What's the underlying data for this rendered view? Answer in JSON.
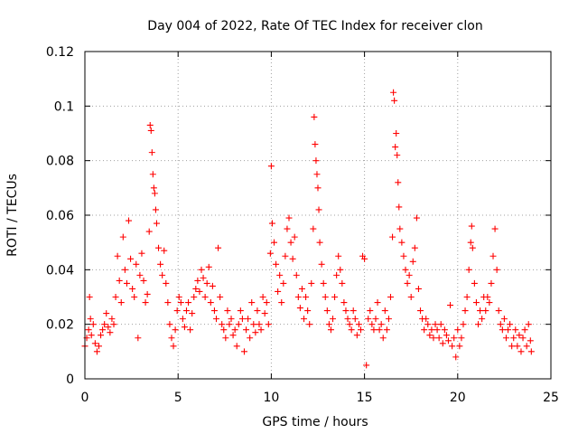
{
  "chart_data": {
    "type": "scatter",
    "title": "Day 004 of 2022, Rate Of TEC Index for receiver clon",
    "xlabel": "GPS time / hours",
    "ylabel": "ROTI / TECUs",
    "xlim": [
      0,
      25
    ],
    "ylim": [
      0,
      0.12
    ],
    "xticks": [
      0,
      5,
      10,
      15,
      20,
      25
    ],
    "xtick_labels": [
      "0",
      "5",
      "10",
      "15",
      "20",
      "25"
    ],
    "yticks": [
      0,
      0.02,
      0.04,
      0.06,
      0.08,
      0.1,
      0.12
    ],
    "ytick_labels": [
      "0",
      "0.02",
      "0.04",
      "0.06",
      "0.08",
      "0.1",
      "0.12"
    ],
    "grid": true,
    "marker": "+",
    "color": "#ff0000",
    "series": [
      {
        "name": "ROTI",
        "points": [
          [
            0.0,
            0.012
          ],
          [
            0.1,
            0.015
          ],
          [
            0.2,
            0.018
          ],
          [
            0.25,
            0.03
          ],
          [
            0.3,
            0.022
          ],
          [
            0.35,
            0.016
          ],
          [
            0.45,
            0.02
          ],
          [
            0.55,
            0.013
          ],
          [
            0.65,
            0.01
          ],
          [
            0.75,
            0.012
          ],
          [
            0.85,
            0.016
          ],
          [
            0.95,
            0.018
          ],
          [
            1.05,
            0.02
          ],
          [
            1.15,
            0.024
          ],
          [
            1.25,
            0.019
          ],
          [
            1.35,
            0.017
          ],
          [
            1.45,
            0.022
          ],
          [
            1.55,
            0.02
          ],
          [
            1.65,
            0.03
          ],
          [
            1.75,
            0.045
          ],
          [
            1.85,
            0.036
          ],
          [
            1.95,
            0.028
          ],
          [
            2.05,
            0.052
          ],
          [
            2.15,
            0.04
          ],
          [
            2.25,
            0.035
          ],
          [
            2.35,
            0.058
          ],
          [
            2.45,
            0.044
          ],
          [
            2.55,
            0.033
          ],
          [
            2.65,
            0.03
          ],
          [
            2.75,
            0.042
          ],
          [
            2.85,
            0.015
          ],
          [
            2.95,
            0.038
          ],
          [
            3.05,
            0.046
          ],
          [
            3.15,
            0.036
          ],
          [
            3.25,
            0.028
          ],
          [
            3.35,
            0.031
          ],
          [
            3.45,
            0.054
          ],
          [
            3.5,
            0.093
          ],
          [
            3.55,
            0.091
          ],
          [
            3.6,
            0.083
          ],
          [
            3.65,
            0.075
          ],
          [
            3.7,
            0.07
          ],
          [
            3.75,
            0.068
          ],
          [
            3.8,
            0.062
          ],
          [
            3.85,
            0.057
          ],
          [
            3.95,
            0.048
          ],
          [
            4.05,
            0.042
          ],
          [
            4.15,
            0.038
          ],
          [
            4.25,
            0.047
          ],
          [
            4.35,
            0.035
          ],
          [
            4.45,
            0.028
          ],
          [
            4.55,
            0.02
          ],
          [
            4.65,
            0.015
          ],
          [
            4.75,
            0.012
          ],
          [
            4.85,
            0.018
          ],
          [
            4.95,
            0.025
          ],
          [
            5.05,
            0.03
          ],
          [
            5.15,
            0.028
          ],
          [
            5.25,
            0.022
          ],
          [
            5.35,
            0.019
          ],
          [
            5.45,
            0.025
          ],
          [
            5.55,
            0.028
          ],
          [
            5.65,
            0.018
          ],
          [
            5.75,
            0.024
          ],
          [
            5.85,
            0.03
          ],
          [
            5.95,
            0.033
          ],
          [
            6.05,
            0.036
          ],
          [
            6.15,
            0.032
          ],
          [
            6.25,
            0.04
          ],
          [
            6.35,
            0.037
          ],
          [
            6.45,
            0.03
          ],
          [
            6.55,
            0.035
          ],
          [
            6.65,
            0.041
          ],
          [
            6.75,
            0.028
          ],
          [
            6.85,
            0.034
          ],
          [
            6.95,
            0.025
          ],
          [
            7.05,
            0.022
          ],
          [
            7.15,
            0.048
          ],
          [
            7.25,
            0.03
          ],
          [
            7.35,
            0.02
          ],
          [
            7.45,
            0.018
          ],
          [
            7.55,
            0.015
          ],
          [
            7.65,
            0.025
          ],
          [
            7.75,
            0.02
          ],
          [
            7.85,
            0.022
          ],
          [
            7.95,
            0.016
          ],
          [
            8.05,
            0.018
          ],
          [
            8.15,
            0.012
          ],
          [
            8.25,
            0.02
          ],
          [
            8.35,
            0.025
          ],
          [
            8.45,
            0.022
          ],
          [
            8.55,
            0.01
          ],
          [
            8.65,
            0.018
          ],
          [
            8.75,
            0.022
          ],
          [
            8.85,
            0.015
          ],
          [
            8.95,
            0.028
          ],
          [
            9.05,
            0.02
          ],
          [
            9.15,
            0.017
          ],
          [
            9.25,
            0.025
          ],
          [
            9.35,
            0.02
          ],
          [
            9.45,
            0.018
          ],
          [
            9.55,
            0.03
          ],
          [
            9.65,
            0.024
          ],
          [
            9.75,
            0.028
          ],
          [
            9.85,
            0.02
          ],
          [
            9.95,
            0.046
          ],
          [
            10.0,
            0.078
          ],
          [
            10.05,
            0.057
          ],
          [
            10.15,
            0.05
          ],
          [
            10.25,
            0.042
          ],
          [
            10.35,
            0.032
          ],
          [
            10.45,
            0.038
          ],
          [
            10.55,
            0.028
          ],
          [
            10.65,
            0.035
          ],
          [
            10.75,
            0.045
          ],
          [
            10.85,
            0.055
          ],
          [
            10.95,
            0.059
          ],
          [
            11.05,
            0.05
          ],
          [
            11.15,
            0.044
          ],
          [
            11.25,
            0.052
          ],
          [
            11.35,
            0.038
          ],
          [
            11.45,
            0.03
          ],
          [
            11.55,
            0.026
          ],
          [
            11.65,
            0.033
          ],
          [
            11.75,
            0.022
          ],
          [
            11.85,
            0.03
          ],
          [
            11.95,
            0.025
          ],
          [
            12.05,
            0.02
          ],
          [
            12.15,
            0.035
          ],
          [
            12.25,
            0.055
          ],
          [
            12.3,
            0.096
          ],
          [
            12.35,
            0.086
          ],
          [
            12.4,
            0.08
          ],
          [
            12.45,
            0.075
          ],
          [
            12.5,
            0.07
          ],
          [
            12.55,
            0.062
          ],
          [
            12.6,
            0.05
          ],
          [
            12.7,
            0.042
          ],
          [
            12.8,
            0.035
          ],
          [
            12.9,
            0.03
          ],
          [
            13.0,
            0.025
          ],
          [
            13.1,
            0.02
          ],
          [
            13.2,
            0.018
          ],
          [
            13.3,
            0.022
          ],
          [
            13.4,
            0.03
          ],
          [
            13.5,
            0.038
          ],
          [
            13.6,
            0.045
          ],
          [
            13.7,
            0.04
          ],
          [
            13.8,
            0.035
          ],
          [
            13.9,
            0.028
          ],
          [
            14.0,
            0.025
          ],
          [
            14.1,
            0.022
          ],
          [
            14.2,
            0.02
          ],
          [
            14.3,
            0.018
          ],
          [
            14.4,
            0.025
          ],
          [
            14.5,
            0.022
          ],
          [
            14.6,
            0.016
          ],
          [
            14.7,
            0.02
          ],
          [
            14.8,
            0.018
          ],
          [
            14.9,
            0.045
          ],
          [
            15.0,
            0.044
          ],
          [
            15.1,
            0.005
          ],
          [
            15.2,
            0.022
          ],
          [
            15.3,
            0.025
          ],
          [
            15.4,
            0.02
          ],
          [
            15.5,
            0.018
          ],
          [
            15.6,
            0.022
          ],
          [
            15.7,
            0.028
          ],
          [
            15.8,
            0.018
          ],
          [
            15.9,
            0.02
          ],
          [
            16.0,
            0.015
          ],
          [
            16.1,
            0.025
          ],
          [
            16.2,
            0.018
          ],
          [
            16.3,
            0.022
          ],
          [
            16.4,
            0.03
          ],
          [
            16.5,
            0.052
          ],
          [
            16.55,
            0.105
          ],
          [
            16.6,
            0.102
          ],
          [
            16.65,
            0.085
          ],
          [
            16.7,
            0.09
          ],
          [
            16.75,
            0.082
          ],
          [
            16.8,
            0.072
          ],
          [
            16.85,
            0.063
          ],
          [
            16.9,
            0.055
          ],
          [
            17.0,
            0.05
          ],
          [
            17.1,
            0.045
          ],
          [
            17.2,
            0.04
          ],
          [
            17.3,
            0.035
          ],
          [
            17.4,
            0.038
          ],
          [
            17.5,
            0.03
          ],
          [
            17.6,
            0.043
          ],
          [
            17.7,
            0.048
          ],
          [
            17.8,
            0.059
          ],
          [
            17.9,
            0.033
          ],
          [
            18.0,
            0.025
          ],
          [
            18.1,
            0.022
          ],
          [
            18.2,
            0.018
          ],
          [
            18.3,
            0.022
          ],
          [
            18.4,
            0.02
          ],
          [
            18.5,
            0.016
          ],
          [
            18.6,
            0.018
          ],
          [
            18.7,
            0.015
          ],
          [
            18.8,
            0.02
          ],
          [
            18.9,
            0.018
          ],
          [
            19.0,
            0.015
          ],
          [
            19.1,
            0.02
          ],
          [
            19.2,
            0.013
          ],
          [
            19.3,
            0.018
          ],
          [
            19.4,
            0.016
          ],
          [
            19.5,
            0.014
          ],
          [
            19.6,
            0.027
          ],
          [
            19.7,
            0.012
          ],
          [
            19.8,
            0.015
          ],
          [
            19.9,
            0.008
          ],
          [
            20.0,
            0.018
          ],
          [
            20.1,
            0.012
          ],
          [
            20.2,
            0.015
          ],
          [
            20.3,
            0.02
          ],
          [
            20.4,
            0.025
          ],
          [
            20.5,
            0.03
          ],
          [
            20.6,
            0.04
          ],
          [
            20.7,
            0.05
          ],
          [
            20.75,
            0.056
          ],
          [
            20.8,
            0.048
          ],
          [
            20.9,
            0.035
          ],
          [
            21.0,
            0.028
          ],
          [
            21.1,
            0.02
          ],
          [
            21.2,
            0.025
          ],
          [
            21.3,
            0.022
          ],
          [
            21.4,
            0.03
          ],
          [
            21.5,
            0.025
          ],
          [
            21.6,
            0.03
          ],
          [
            21.7,
            0.028
          ],
          [
            21.8,
            0.035
          ],
          [
            21.9,
            0.045
          ],
          [
            22.0,
            0.055
          ],
          [
            22.1,
            0.04
          ],
          [
            22.2,
            0.025
          ],
          [
            22.3,
            0.02
          ],
          [
            22.4,
            0.018
          ],
          [
            22.5,
            0.022
          ],
          [
            22.6,
            0.015
          ],
          [
            22.7,
            0.018
          ],
          [
            22.8,
            0.02
          ],
          [
            22.9,
            0.012
          ],
          [
            23.0,
            0.015
          ],
          [
            23.1,
            0.018
          ],
          [
            23.2,
            0.012
          ],
          [
            23.3,
            0.016
          ],
          [
            23.4,
            0.01
          ],
          [
            23.5,
            0.015
          ],
          [
            23.6,
            0.018
          ],
          [
            23.7,
            0.012
          ],
          [
            23.8,
            0.02
          ],
          [
            23.9,
            0.014
          ],
          [
            23.95,
            0.01
          ]
        ]
      }
    ]
  }
}
